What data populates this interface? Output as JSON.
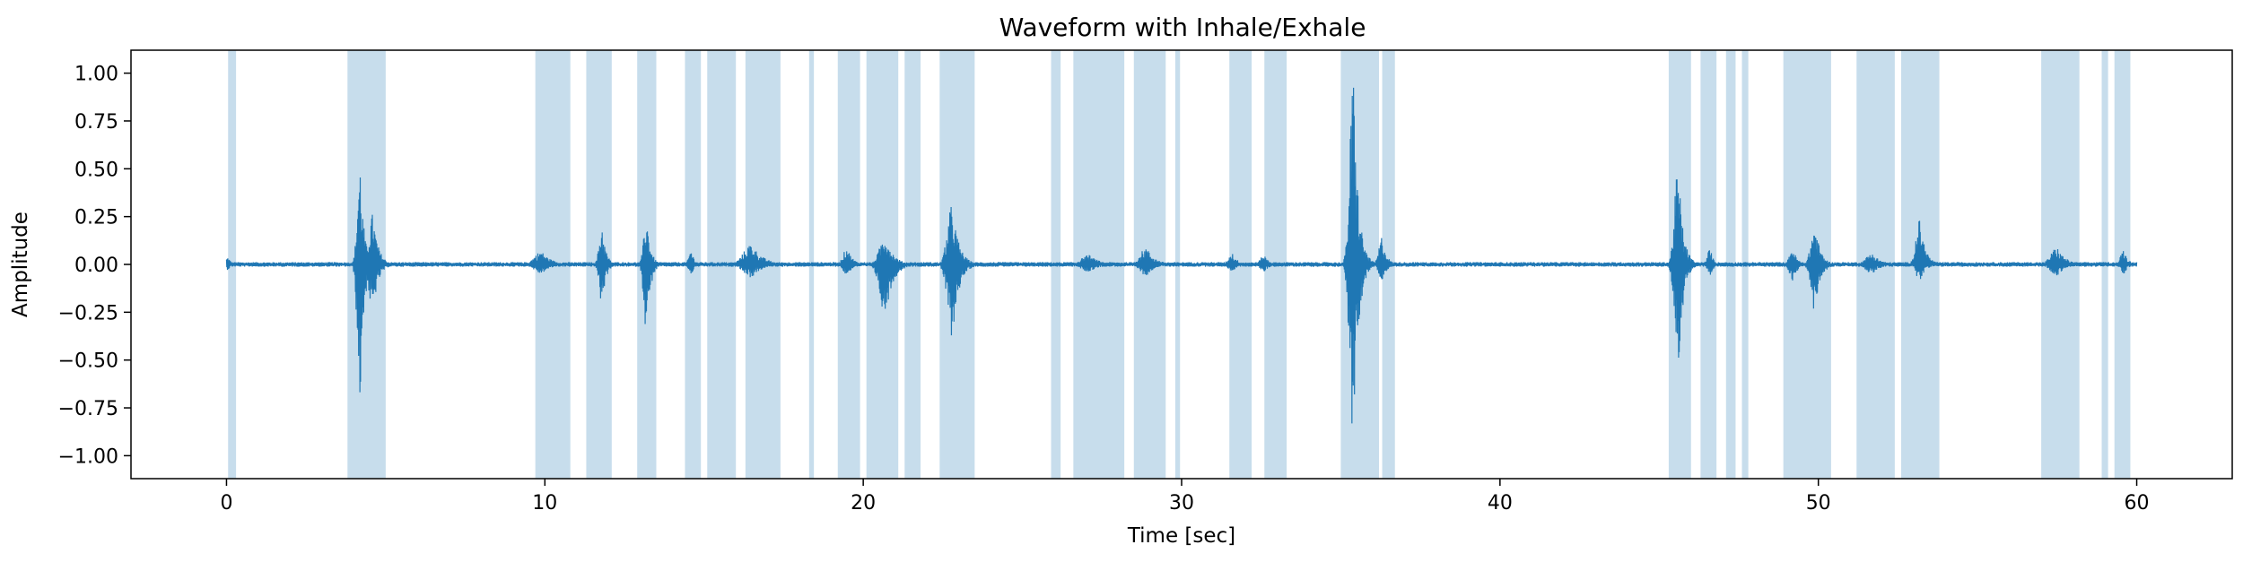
{
  "chart_data": {
    "type": "line",
    "title": "Waveform with Inhale/Exhale",
    "xlabel": "Time [sec]",
    "ylabel": "Amplitude",
    "xlim": [
      -3,
      63
    ],
    "ylim": [
      -1.12,
      1.12
    ],
    "x_ticks": [
      0,
      10,
      20,
      30,
      40,
      50,
      60
    ],
    "x_tick_labels": [
      "0",
      "10",
      "20",
      "30",
      "40",
      "50",
      "60"
    ],
    "y_ticks": [
      1.0,
      0.75,
      0.5,
      0.25,
      0.0,
      -0.25,
      -0.5,
      -0.75,
      -1.0
    ],
    "y_tick_labels": [
      "1.00",
      "0.75",
      "0.50",
      "0.25",
      "0.00",
      "−0.25",
      "−0.50",
      "−0.75",
      "−1.00"
    ],
    "grid": false,
    "legend": "none",
    "colors": {
      "waveform": "#1f77b4",
      "region": "#1f77b4"
    },
    "region_opacity": 0.25,
    "series": [
      {
        "values_description_only": false,
        "background_amplitude": 0.012,
        "start": 0.0,
        "end": 60.0
      }
    ],
    "events": [
      {
        "t": 0.05,
        "amp_pos": 0.04,
        "amp_neg": 0.03,
        "dur": 0.3
      },
      {
        "t": 4.2,
        "amp_pos": 0.54,
        "amp_neg": 0.73,
        "dur": 0.35
      },
      {
        "t": 4.6,
        "amp_pos": 0.27,
        "amp_neg": 0.26,
        "dur": 0.5
      },
      {
        "t": 9.9,
        "amp_pos": 0.07,
        "amp_neg": 0.05,
        "dur": 0.9
      },
      {
        "t": 11.8,
        "amp_pos": 0.21,
        "amp_neg": 0.22,
        "dur": 0.35
      },
      {
        "t": 13.2,
        "amp_pos": 0.26,
        "amp_neg": 0.38,
        "dur": 0.35
      },
      {
        "t": 14.6,
        "amp_pos": 0.08,
        "amp_neg": 0.06,
        "dur": 0.3
      },
      {
        "t": 16.5,
        "amp_pos": 0.11,
        "amp_neg": 0.07,
        "dur": 1.0
      },
      {
        "t": 19.5,
        "amp_pos": 0.09,
        "amp_neg": 0.06,
        "dur": 0.5
      },
      {
        "t": 20.7,
        "amp_pos": 0.16,
        "amp_neg": 0.27,
        "dur": 0.7
      },
      {
        "t": 22.8,
        "amp_pos": 0.32,
        "amp_neg": 0.39,
        "dur": 0.6
      },
      {
        "t": 27.1,
        "amp_pos": 0.05,
        "amp_neg": 0.04,
        "dur": 1.0
      },
      {
        "t": 28.9,
        "amp_pos": 0.09,
        "amp_neg": 0.06,
        "dur": 0.8
      },
      {
        "t": 31.6,
        "amp_pos": 0.06,
        "amp_neg": 0.04,
        "dur": 0.5
      },
      {
        "t": 32.6,
        "amp_pos": 0.05,
        "amp_neg": 0.04,
        "dur": 0.5
      },
      {
        "t": 35.4,
        "amp_pos": 1.0,
        "amp_neg": 1.0,
        "dur": 0.45
      },
      {
        "t": 36.3,
        "amp_pos": 0.15,
        "amp_neg": 0.1,
        "dur": 0.4
      },
      {
        "t": 45.6,
        "amp_pos": 0.53,
        "amp_neg": 0.58,
        "dur": 0.45
      },
      {
        "t": 46.6,
        "amp_pos": 0.09,
        "amp_neg": 0.07,
        "dur": 0.3
      },
      {
        "t": 49.2,
        "amp_pos": 0.09,
        "amp_neg": 0.1,
        "dur": 0.4
      },
      {
        "t": 49.9,
        "amp_pos": 0.21,
        "amp_neg": 0.25,
        "dur": 0.5
      },
      {
        "t": 51.7,
        "amp_pos": 0.06,
        "amp_neg": 0.05,
        "dur": 0.8
      },
      {
        "t": 53.2,
        "amp_pos": 0.24,
        "amp_neg": 0.09,
        "dur": 0.5
      },
      {
        "t": 57.5,
        "amp_pos": 0.09,
        "amp_neg": 0.06,
        "dur": 0.8
      },
      {
        "t": 59.6,
        "amp_pos": 0.08,
        "amp_neg": 0.05,
        "dur": 0.4
      }
    ],
    "regions": [
      [
        0.05,
        0.3
      ],
      [
        3.8,
        5.0
      ],
      [
        9.7,
        10.8
      ],
      [
        11.3,
        12.1
      ],
      [
        12.9,
        13.5
      ],
      [
        14.4,
        14.9
      ],
      [
        15.1,
        16.0
      ],
      [
        16.3,
        17.4
      ],
      [
        18.3,
        18.45
      ],
      [
        19.2,
        19.9
      ],
      [
        20.1,
        21.1
      ],
      [
        21.3,
        21.8
      ],
      [
        22.4,
        23.5
      ],
      [
        25.9,
        26.2
      ],
      [
        26.6,
        28.2
      ],
      [
        28.5,
        29.5
      ],
      [
        29.8,
        29.95
      ],
      [
        31.5,
        32.2
      ],
      [
        32.6,
        33.3
      ],
      [
        35.0,
        36.2
      ],
      [
        36.3,
        36.7
      ],
      [
        45.3,
        46.0
      ],
      [
        46.3,
        46.8
      ],
      [
        47.1,
        47.4
      ],
      [
        47.6,
        47.8
      ],
      [
        48.9,
        50.4
      ],
      [
        51.2,
        52.4
      ],
      [
        52.6,
        53.8
      ],
      [
        57.0,
        58.2
      ],
      [
        58.9,
        59.1
      ],
      [
        59.3,
        59.8
      ]
    ]
  }
}
